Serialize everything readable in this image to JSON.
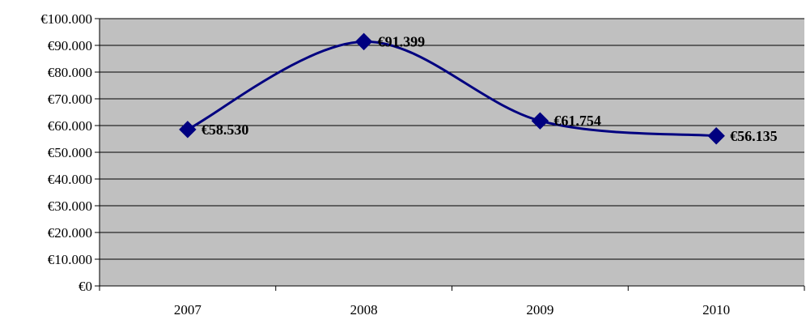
{
  "chart_data": {
    "type": "line",
    "categories": [
      "2007",
      "2008",
      "2009",
      "2010"
    ],
    "series": [
      {
        "values": [
          58530,
          91399,
          61754,
          56135
        ],
        "data_labels": [
          "€58.530",
          "€91.399",
          "€61.754",
          "€56.135"
        ],
        "color": "#000080",
        "smooth": true,
        "marker": "diamond"
      }
    ],
    "ylim": [
      0,
      100000
    ],
    "yticks": [
      0,
      10000,
      20000,
      30000,
      40000,
      50000,
      60000,
      70000,
      80000,
      90000,
      100000
    ],
    "ytick_labels": [
      "€0",
      "€10.000",
      "€20.000",
      "€30.000",
      "€40.000",
      "€50.000",
      "€60.000",
      "€70.000",
      "€80.000",
      "€90.000",
      "€100.000"
    ],
    "grid": true,
    "legend": "none",
    "title": "",
    "xlabel": "",
    "ylabel": "",
    "colors": {
      "plot_background": "#C0C0C0",
      "gridline": "#000000",
      "axis": "#000000",
      "line": "#000080",
      "marker": "#000080"
    }
  }
}
